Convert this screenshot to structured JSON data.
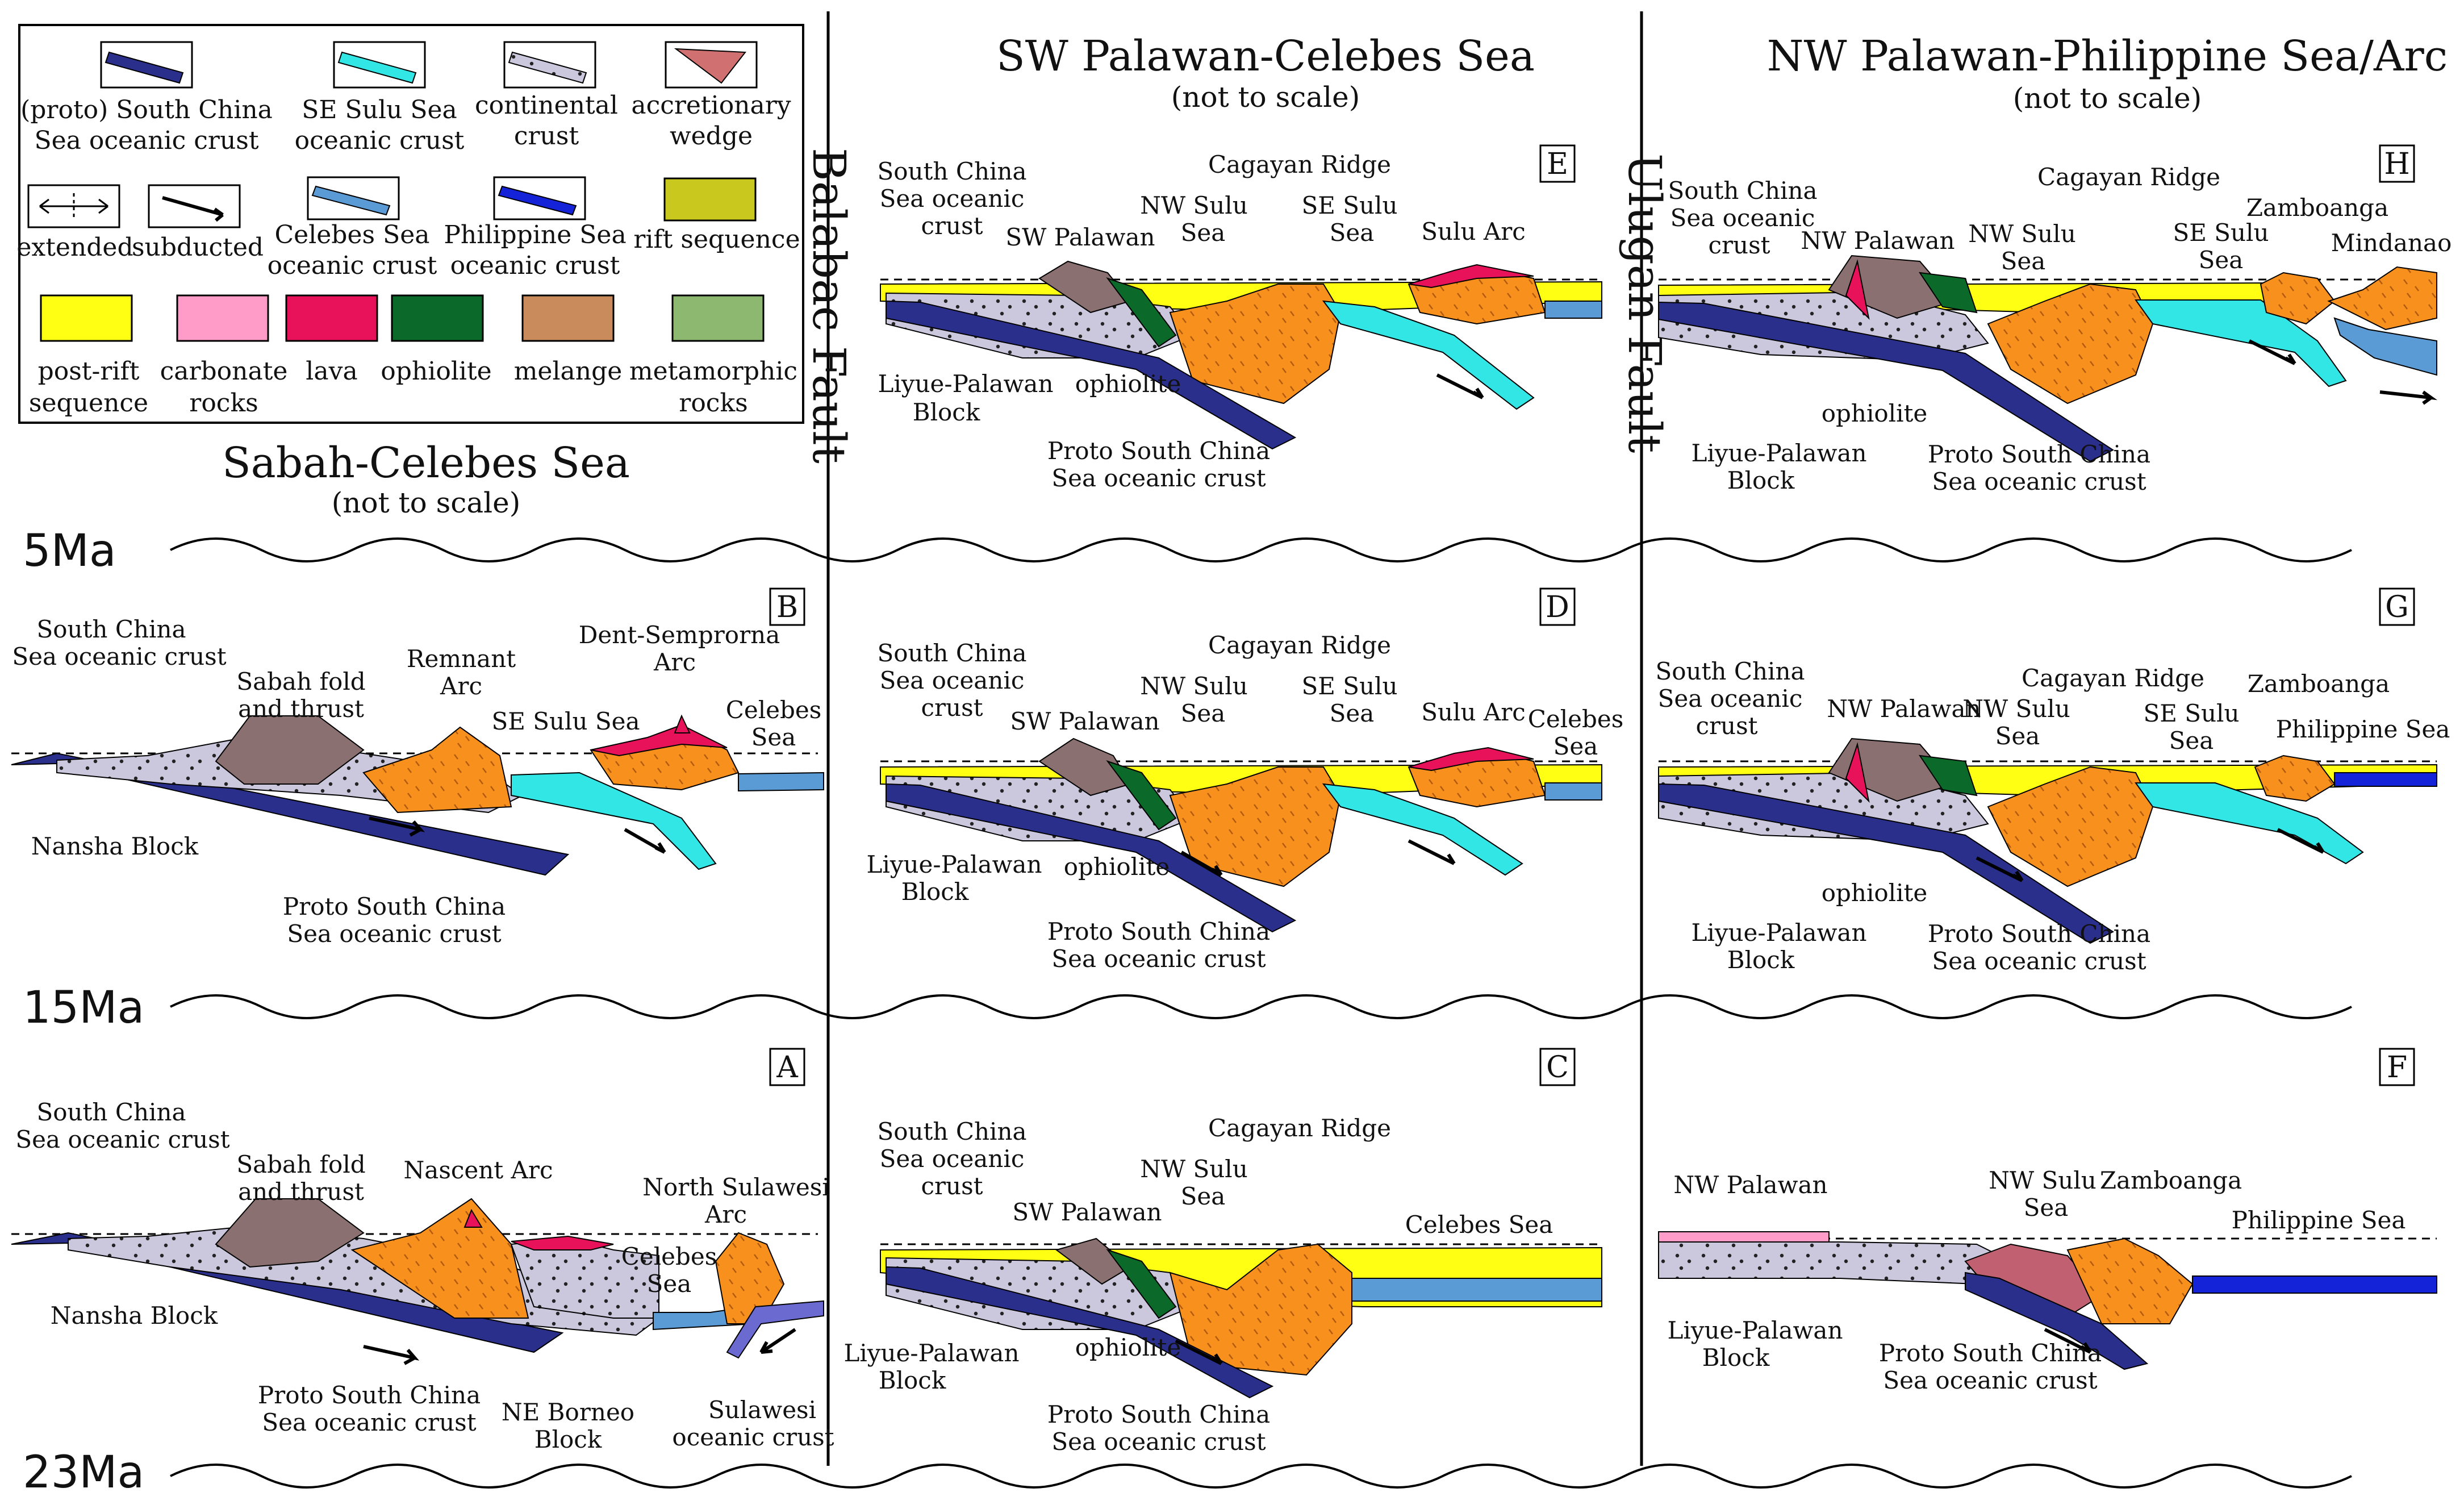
{
  "legend": {
    "items": [
      {
        "key": "proto_scs",
        "lines": [
          "(proto) South China",
          "Sea oceanic crust"
        ],
        "color": "#2b2f8c"
      },
      {
        "key": "se_sulu",
        "lines": [
          "SE Sulu Sea",
          "oceanic crust"
        ],
        "color": "#33e6e6"
      },
      {
        "key": "continental",
        "lines": [
          "continental",
          "crust"
        ],
        "color": "#c9c6dc"
      },
      {
        "key": "accretionary",
        "lines": [
          "accretionary",
          "wedge"
        ],
        "color": "#d07070"
      },
      {
        "key": "extended",
        "lines": [
          "extended"
        ],
        "color": "#000000"
      },
      {
        "key": "subducted",
        "lines": [
          "subducted"
        ],
        "color": "#000000"
      },
      {
        "key": "celebes",
        "lines": [
          "Celebes Sea",
          "oceanic crust"
        ],
        "color": "#5b9bd5"
      },
      {
        "key": "philippine",
        "lines": [
          "Philippine Sea",
          "oceanic crust"
        ],
        "color": "#1422d8"
      },
      {
        "key": "rift",
        "lines": [
          "rift sequence"
        ],
        "color": "#c8c81e"
      },
      {
        "key": "postrift",
        "lines": [
          "post-rift",
          "sequence"
        ],
        "color": "#ffff14"
      },
      {
        "key": "carbonate",
        "lines": [
          "carbonate",
          "rocks"
        ],
        "color": "#ff9cc8"
      },
      {
        "key": "lava",
        "lines": [
          "lava"
        ],
        "color": "#e8125a"
      },
      {
        "key": "ophiolite",
        "lines": [
          "ophiolite"
        ],
        "color": "#0b6a2a"
      },
      {
        "key": "melange",
        "lines": [
          "melange"
        ],
        "color": "#c98a5c"
      },
      {
        "key": "metamorphic",
        "lines": [
          "metamorphic",
          "rocks"
        ],
        "color": "#8db870"
      }
    ]
  },
  "columns": {
    "left": {
      "title": "Sabah-Celebes Sea",
      "subtitle": "(not to scale)"
    },
    "middle": {
      "title": "SW Palawan-Celebes Sea",
      "subtitle": "(not to scale)"
    },
    "right": {
      "title": "NW Palawan-Philippine Sea/Arc",
      "subtitle": "(not to scale)"
    }
  },
  "faults": {
    "balabac": "Balabac Fault",
    "ulugan": "Ulugan Fault"
  },
  "ages": {
    "row1": "5Ma",
    "row2": "15Ma",
    "row3": "23Ma"
  },
  "panels": {
    "A": {
      "letter": "A",
      "labels": [
        "South China",
        "Sea oceanic crust",
        "Sabah fold",
        "and thrust",
        "Nascent Arc",
        "North Sulawesi",
        "Arc",
        "Celebes",
        "Sea",
        "Nansha Block",
        "Proto South China",
        "Sea oceanic crust",
        "NE Borneo",
        "Block",
        "Sulawesi",
        "oceanic crust"
      ]
    },
    "B": {
      "letter": "B",
      "labels": [
        "South China",
        "Sea oceanic crust",
        "Sabah fold",
        "and thrust",
        "Remnant",
        "Arc",
        "Dent-Semprorna",
        "Arc",
        "SE Sulu Sea",
        "Celebes",
        "Sea",
        "Nansha Block",
        "Proto South China",
        "Sea oceanic crust"
      ]
    },
    "C": {
      "letter": "C",
      "labels": [
        "South China",
        "Sea oceanic",
        "crust",
        "NW Sulu",
        "Sea",
        "Cagayan Ridge",
        "SW Palawan",
        "Celebes Sea",
        "Liyue-Palawan",
        "Block",
        "ophiolite",
        "Proto South China",
        "Sea oceanic crust"
      ]
    },
    "D": {
      "letter": "D",
      "labels": [
        "South China",
        "Sea oceanic",
        "crust",
        "NW Sulu",
        "Sea",
        "Cagayan Ridge",
        "SE Sulu",
        "Sea",
        "SW Palawan",
        "Sulu Arc",
        "Celebes",
        "Sea",
        "Liyue-Palawan",
        "Block",
        "ophiolite",
        "Proto South China",
        "Sea oceanic crust"
      ]
    },
    "E": {
      "letter": "E",
      "labels": [
        "South China",
        "Sea oceanic",
        "crust",
        "NW Sulu",
        "Sea",
        "Cagayan Ridge",
        "SE Sulu",
        "Sea",
        "SW Palawan",
        "Sulu Arc",
        "Liyue-Palawan",
        "Block",
        "ophiolite",
        "Proto South China",
        "Sea oceanic crust"
      ]
    },
    "F": {
      "letter": "F",
      "labels": [
        "NW Palawan",
        "NW Sulu",
        "Sea",
        "Zamboanga",
        "Philippine Sea",
        "Liyue-Palawan",
        "Block",
        "Proto South China",
        "Sea oceanic crust"
      ]
    },
    "G": {
      "letter": "G",
      "labels": [
        "South China",
        "Sea oceanic",
        "crust",
        "NW Palawan",
        "NW Sulu",
        "Sea",
        "Cagayan Ridge",
        "SE Sulu",
        "Sea",
        "Zamboanga",
        "Philippine Sea",
        "ophiolite",
        "Liyue-Palawan",
        "Block",
        "Proto South China",
        "Sea oceanic crust"
      ]
    },
    "H": {
      "letter": "H",
      "labels": [
        "South China",
        "Sea oceanic",
        "crust",
        "NW Palawan",
        "NW Sulu",
        "Sea",
        "Cagayan Ridge",
        "SE Sulu",
        "Sea",
        "Zamboanga",
        "Mindanao",
        "ophiolite",
        "Liyue-Palawan",
        "Block",
        "Proto South China",
        "Sea oceanic crust"
      ]
    }
  }
}
